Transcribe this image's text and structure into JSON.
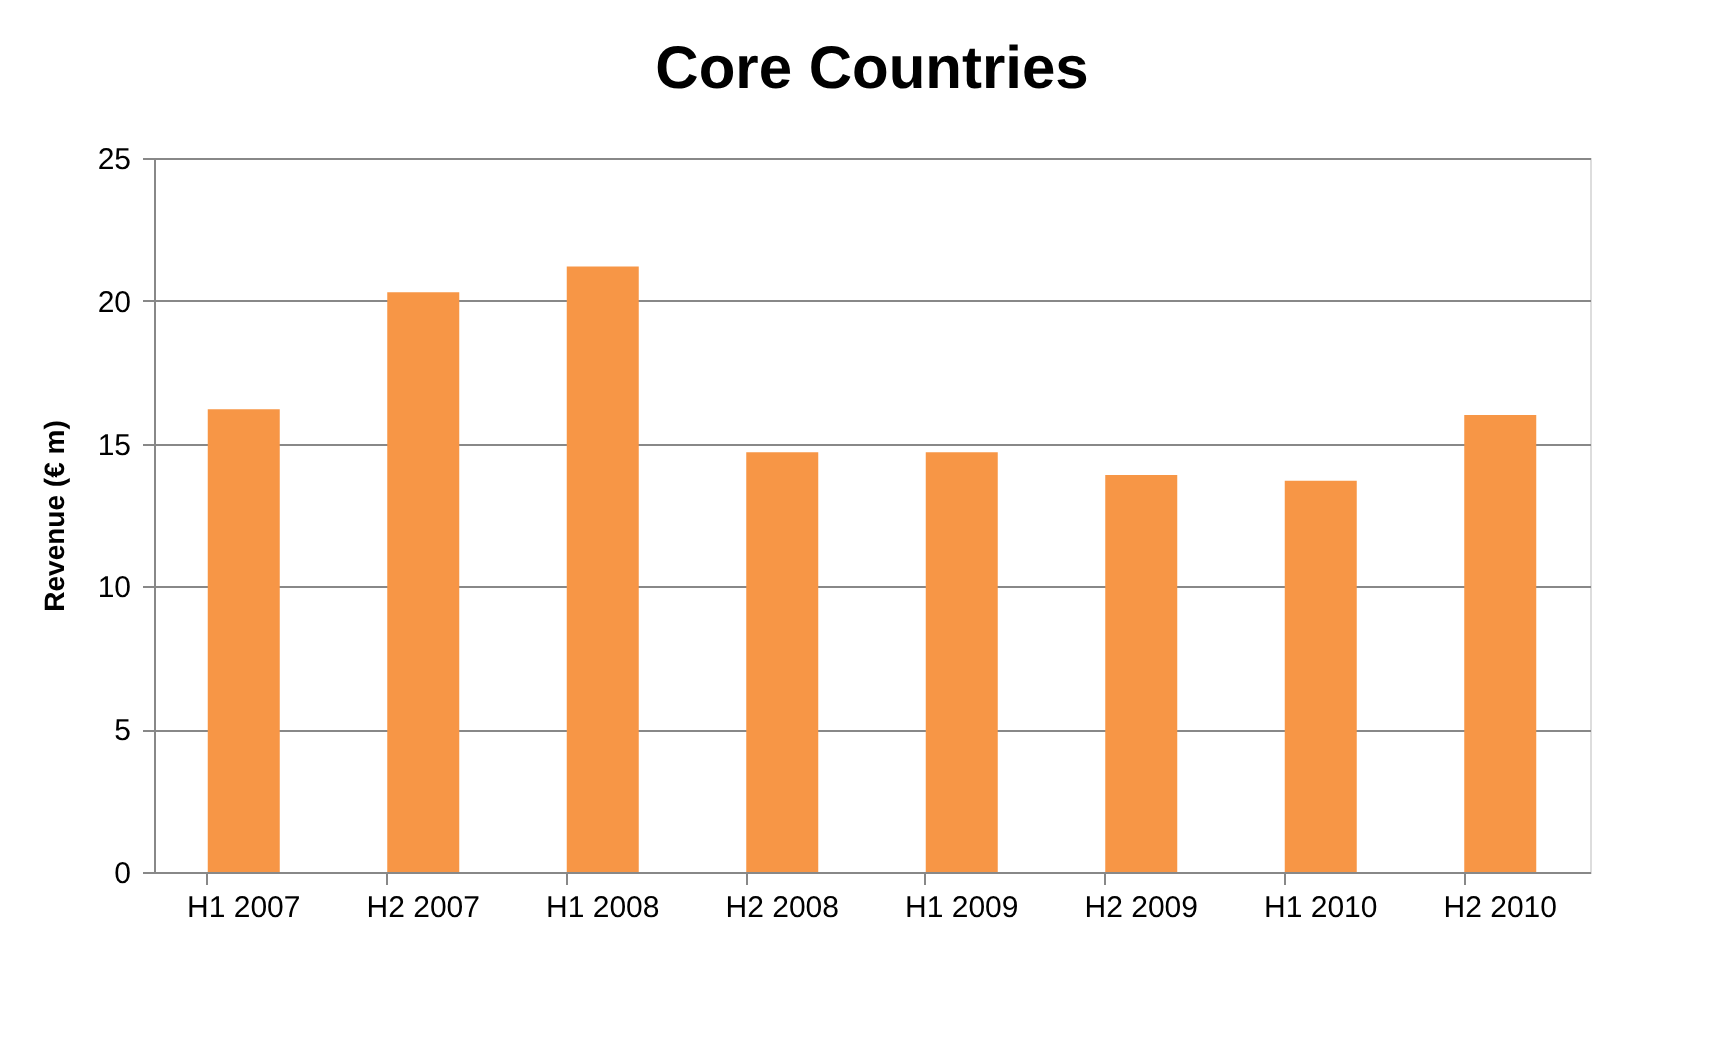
{
  "chart_data": {
    "type": "bar",
    "title": "Core Countries",
    "ylabel": "Revenue (€ m)",
    "categories": [
      "H1 2007",
      "H2 2007",
      "H1 2008",
      "H2 2008",
      "H1 2009",
      "H2 2009",
      "H1 2010",
      "H2 2010"
    ],
    "values": [
      16.2,
      20.3,
      21.2,
      14.7,
      14.7,
      13.9,
      13.7,
      16.0
    ],
    "color": "#f79646",
    "ylim": [
      0,
      25
    ],
    "yticks": [
      0,
      5,
      10,
      15,
      20,
      25
    ],
    "grid": "y"
  }
}
